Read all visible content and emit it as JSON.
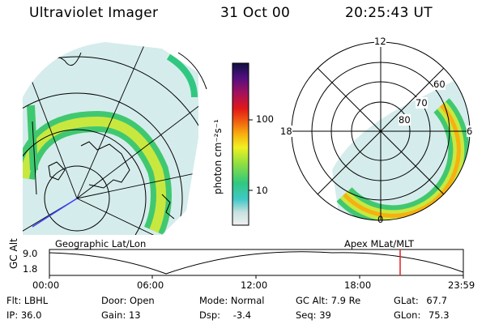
{
  "header": {
    "title": "Ultraviolet Imager",
    "date": "31 Oct 00",
    "time": "20:25:43 UT"
  },
  "colorbar": {
    "unit_label": "photon cm⁻²s⁻¹",
    "ticks": [
      "100",
      "10"
    ],
    "scale": "log"
  },
  "polar_plot": {
    "mlt_labels": [
      "12",
      "18",
      "6",
      "0"
    ],
    "mlat_labels": [
      "60",
      "70",
      "80"
    ]
  },
  "map_labels": {
    "left": "Geographic Lat/Lon",
    "right": "Apex MLat/MLT"
  },
  "timeline": {
    "ylabel": "GC Alt",
    "yticks": [
      "9.0",
      "1.8"
    ],
    "xticks": [
      "00:00",
      "06:00",
      "12:00",
      "18:00",
      "23:59"
    ],
    "current_marker_color": "#e02020"
  },
  "info": {
    "row1": [
      {
        "label": "Flt:",
        "value": "LBHL"
      },
      {
        "label": "Door:",
        "value": "Open"
      },
      {
        "label": "Mode:",
        "value": "Normal"
      },
      {
        "label": "GC Alt:",
        "value": "7.9 Re"
      },
      {
        "label": "GLat:",
        "value": "67.7"
      }
    ],
    "row2": [
      {
        "label": "IP:",
        "value": "36.0"
      },
      {
        "label": "Gain:",
        "value": "13"
      },
      {
        "label": "Dsp:",
        "value": "-3.4"
      },
      {
        "label": "Seq:",
        "value": "39"
      },
      {
        "label": "GLon:",
        "value": "75.3"
      }
    ]
  }
}
